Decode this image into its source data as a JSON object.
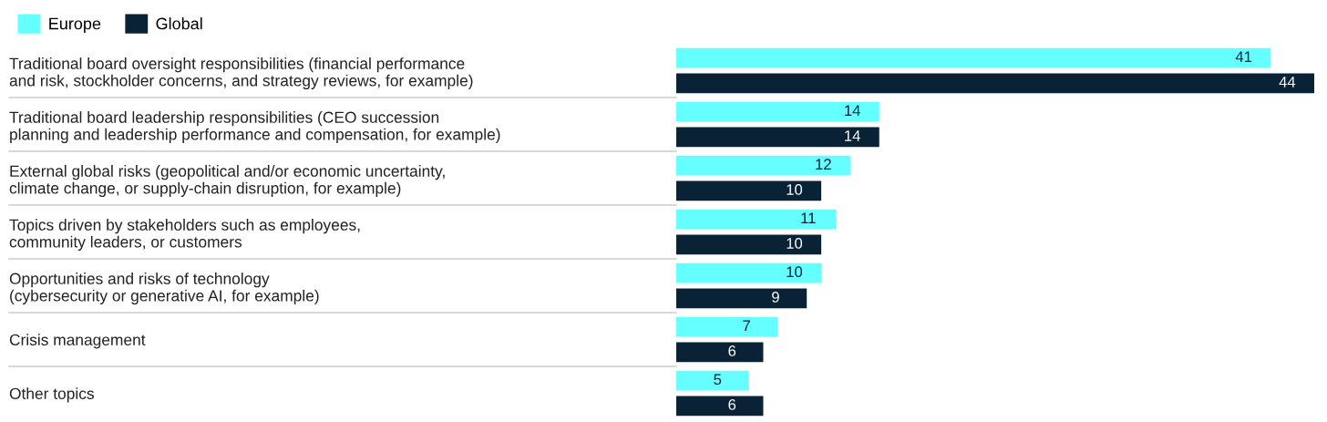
{
  "chart_data": {
    "type": "bar",
    "orientation": "horizontal",
    "legend": "top left",
    "data_labels": true,
    "tick_labels": "y",
    "xlim": [
      0,
      44
    ],
    "grid": false,
    "categories": [
      "Traditional board oversight responsibilities (financial performance\nand risk, stockholder concerns, and strategy reviews, for example)",
      "Traditional board leadership responsibilities (CEO succession\nplanning and leadership performance and compensation, for example)",
      "External global risks (geopolitical and/or economic uncertainty,\nclimate change, or supply-chain disruption, for example)",
      "Topics driven by stakeholders such as employees,\ncommunity leaders, or customers",
      "Opportunities and risks of technology\n(cybersecurity or generative AI, for example)",
      "Crisis management",
      "Other topics"
    ],
    "series": [
      {
        "name": "Europe",
        "color": "#66ffff",
        "values": [
          41,
          14,
          12,
          11,
          10,
          7,
          5
        ]
      },
      {
        "name": "Global",
        "color": "#0a2236",
        "values": [
          44,
          14,
          10,
          10,
          9,
          6,
          6
        ]
      }
    ]
  }
}
